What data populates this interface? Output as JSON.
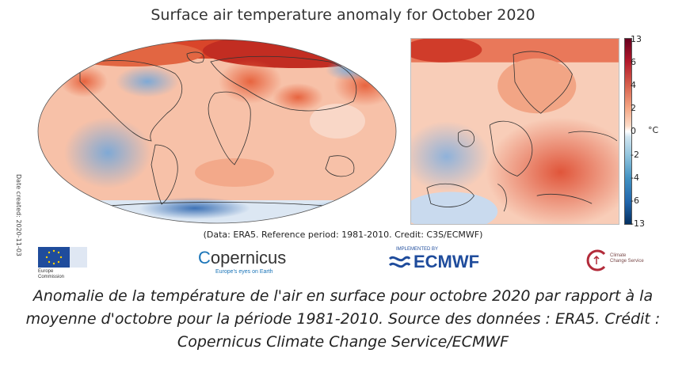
{
  "title": "Surface air temperature anomaly for October 2020",
  "date_created": "Date created: 2020-11-03",
  "credit_line": "(Data: ERA5. Reference period: 1981-2010. Credit: C3S/ECMWF)",
  "colorbar": {
    "ticks": [
      "13",
      "6",
      "4",
      "2",
      "0",
      "-2",
      "-4",
      "-6",
      "-13"
    ],
    "unit": "°C",
    "colors": [
      "#67001f",
      "#b2182b",
      "#d6604d",
      "#f4a582",
      "#fddbc7",
      "#ffffff",
      "#d1e5f0",
      "#92c5de",
      "#4393c3",
      "#2166ac",
      "#053061"
    ]
  },
  "logos": {
    "eu": {
      "text1": "Europe",
      "text2": "Commission"
    },
    "copernicus": {
      "name": "opernicus",
      "tagline": "Europe's eyes on Earth"
    },
    "ecmwf": {
      "name": "ECMWF",
      "prefix": "IMPLEMENTED BY"
    },
    "c3s": {
      "line1": "Climate",
      "line2": "Change Service"
    }
  },
  "caption": "Anomalie de la température de l'air en surface pour octobre 2020 par rapport à la moyenne d'octobre pour la période 1981-2010. Source des données : ERA5. Crédit : Copernicus Climate Change Service/ECMWF"
}
